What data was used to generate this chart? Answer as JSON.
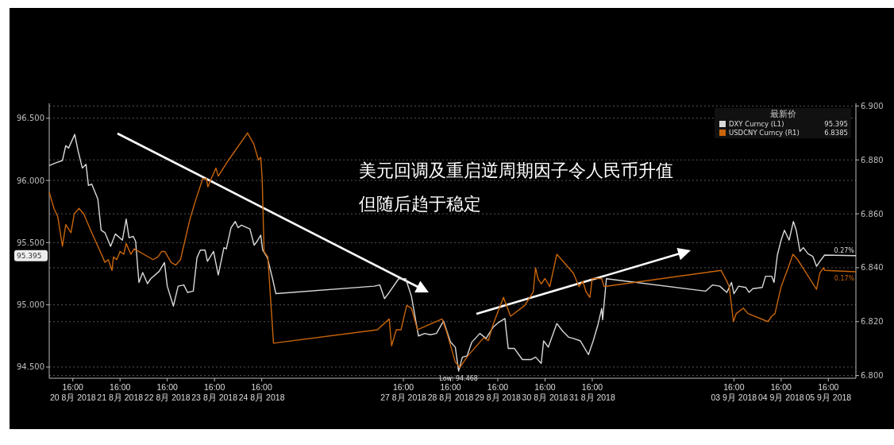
{
  "chart_data": {
    "type": "line",
    "legend_title": "最新价",
    "xlim": [
      "2018-08-20T04:00",
      "2018-09-06T06:00"
    ],
    "xticks": [
      {
        "value": "2018-08-20T16:00",
        "label": "16:00\n20 8月 2018"
      },
      {
        "value": "2018-08-21T16:00",
        "label": "16:00\n21 8月 2018"
      },
      {
        "value": "2018-08-22T16:00",
        "label": "16:00\n22 8月 2018"
      },
      {
        "value": "2018-08-23T16:00",
        "label": "16:00\n23 8月 2018"
      },
      {
        "value": "2018-08-24T16:00",
        "label": "16:00\n24 8月 2018"
      },
      {
        "value": "2018-08-27T16:00",
        "label": "16:00\n27 8月 2018"
      },
      {
        "value": "2018-08-28T16:00",
        "label": "16:00\n28 8月 2018"
      },
      {
        "value": "2018-08-29T16:00",
        "label": "16:00\n29 8月 2018"
      },
      {
        "value": "2018-08-30T16:00",
        "label": "16:00\n30 8月 2018"
      },
      {
        "value": "2018-08-31T16:00",
        "label": "16:00\n31 8月 2018"
      },
      {
        "value": "2018-09-03T16:00",
        "label": "16:00\n03 9月 2018"
      },
      {
        "value": "2018-09-04T16:00",
        "label": "16:00\n04 9月 2018"
      },
      {
        "value": "2018-09-05T16:00",
        "label": "16:00\n05 9月 2018"
      }
    ],
    "ylim": [
      94.41,
      96.62
    ],
    "yticks": [
      {
        "value": 94.5,
        "label": "94.500"
      },
      {
        "value": 95,
        "label": "95.000"
      },
      {
        "value": 95.5,
        "label": "95.500"
      },
      {
        "value": 96,
        "label": "96.000"
      },
      {
        "value": 96.5,
        "label": "96.500"
      }
    ],
    "y2lim": [
      6.799,
      6.901
    ],
    "y2ticks": [
      {
        "value": 6.8,
        "label": "6.800"
      },
      {
        "value": 6.82,
        "label": "6.820"
      },
      {
        "value": 6.84,
        "label": "6.840"
      },
      {
        "value": 6.86,
        "label": "6.860"
      },
      {
        "value": 6.88,
        "label": "6.880"
      },
      {
        "value": 6.9,
        "label": "6.900"
      }
    ],
    "grid": "y",
    "legend": "top right",
    "series": [
      {
        "name": "DXY Curncy (L1)",
        "color": "#d9d9d9",
        "x": [
          "2018-08-20T04:00",
          "2018-08-20T07:07",
          "2018-08-20T10:43",
          "2018-08-20T12:24",
          "2018-08-20T13:50",
          "2018-08-20T16:58",
          "2018-08-20T18:38",
          "2018-08-20T20:48",
          "2018-08-20T22:43",
          "2018-08-20T23:55",
          "2018-08-21T01:36",
          "2018-08-21T04:43",
          "2018-08-21T06:24",
          "2018-08-21T08:19",
          "2018-08-21T11:12",
          "2018-08-21T13:36",
          "2018-08-21T17:12",
          "2018-08-21T19:07",
          "2018-08-21T20:34",
          "2018-08-21T22:43",
          "2018-08-21T23:55",
          "2018-08-22T01:36",
          "2018-08-22T03:31",
          "2018-08-22T05:55",
          "2018-08-22T07:36",
          "2018-08-22T11:55",
          "2018-08-22T14:34",
          "2018-08-22T16:00",
          "2018-08-22T19:07",
          "2018-08-22T21:31",
          "2018-08-23T00:24",
          "2018-08-23T02:19",
          "2018-08-23T05:12",
          "2018-08-23T07:07",
          "2018-08-23T08:48",
          "2018-08-23T11:12",
          "2018-08-23T12:24",
          "2018-08-23T15:31",
          "2018-08-23T17:55",
          "2018-08-23T20:48",
          "2018-08-23T22:00",
          "2018-08-24T00:24",
          "2018-08-24T02:34",
          "2018-08-24T04:00",
          "2018-08-24T05:41",
          "2018-08-24T10:00",
          "2018-08-24T12:10",
          "2018-08-24T13:36",
          "2018-08-24T15:31",
          "2018-08-24T16:29",
          "2018-08-24T18:53",
          "2018-08-24T21:31",
          "2018-08-24T23:12",
          "2018-08-27T01:07",
          "2018-08-27T04:00",
          "2018-08-27T06:24",
          "2018-08-27T08:48",
          "2018-08-27T13:36",
          "2018-08-27T17:12",
          "2018-08-27T20:05",
          "2018-08-27T23:41",
          "2018-08-28T02:48",
          "2018-08-28T05:41",
          "2018-08-28T08:48",
          "2018-08-28T12:24",
          "2018-08-28T16:00",
          "2018-08-28T18:24",
          "2018-08-28T20:05",
          "2018-08-28T22:00",
          "2018-08-29T00:24",
          "2018-08-29T02:48",
          "2018-08-29T06:53",
          "2018-08-29T10:00",
          "2018-08-29T13:36",
          "2018-08-29T16:29",
          "2018-08-29T19:36",
          "2018-08-29T21:17",
          "2018-08-30T00:24",
          "2018-08-30T04:29",
          "2018-08-30T08:48",
          "2018-08-30T11:12",
          "2018-08-30T14:05",
          "2018-08-30T15:17",
          "2018-08-30T17:41",
          "2018-08-30T22:00",
          "2018-08-31T00:53",
          "2018-08-31T04:00",
          "2018-08-31T06:24",
          "2018-08-31T10:00",
          "2018-08-31T14:05",
          "2018-08-31T16:29",
          "2018-08-31T18:53",
          "2018-08-31T20:48",
          "2018-08-31T21:17",
          "2018-08-31T23:12",
          "2018-09-03T01:36",
          "2018-09-03T05:12",
          "2018-09-03T08:48",
          "2018-09-03T12:24",
          "2018-09-03T14:48",
          "2018-09-03T16:00",
          "2018-09-03T18:24",
          "2018-09-03T22:00",
          "2018-09-03T23:41",
          "2018-09-04T01:36",
          "2018-09-04T06:24",
          "2018-09-04T08:05",
          "2018-09-04T11:12",
          "2018-09-04T12:24",
          "2018-09-04T14:05",
          "2018-09-04T16:00",
          "2018-09-04T17:41",
          "2018-09-04T20:05",
          "2018-09-04T22:14",
          "2018-09-04T23:41",
          "2018-09-05T01:36",
          "2018-09-05T03:17",
          "2018-09-05T05:41",
          "2018-09-05T08:05",
          "2018-09-05T10:00",
          "2018-09-05T11:41",
          "2018-09-05T14:05",
          "2018-09-06T06:00"
        ],
        "values": [
          96.12,
          96.14,
          96.16,
          96.28,
          96.26,
          96.37,
          96.24,
          96.1,
          96.13,
          95.96,
          95.97,
          95.85,
          95.6,
          95.58,
          95.47,
          95.57,
          95.52,
          95.69,
          95.54,
          95.55,
          95.51,
          95.18,
          95.26,
          95.17,
          95.21,
          95.27,
          95.34,
          95.15,
          94.99,
          95.15,
          95.16,
          95.1,
          95.11,
          95.38,
          95.44,
          95.44,
          95.35,
          95.43,
          95.24,
          95.46,
          95.45,
          95.62,
          95.67,
          95.62,
          95.64,
          95.61,
          95.48,
          95.51,
          95.56,
          95.44,
          95.38,
          95.21,
          95.09,
          95.15,
          95.16,
          95.05,
          95.1,
          95.21,
          95.21,
          95.07,
          94.75,
          94.77,
          94.76,
          94.77,
          94.87,
          94.7,
          94.66,
          94.468,
          94.58,
          94.59,
          94.7,
          94.77,
          94.73,
          94.82,
          94.86,
          94.89,
          94.65,
          94.65,
          94.56,
          94.56,
          94.58,
          94.53,
          94.71,
          94.66,
          94.85,
          94.79,
          94.74,
          94.73,
          94.71,
          94.6,
          94.71,
          94.84,
          94.97,
          94.88,
          95.21,
          95.11,
          95.16,
          95.15,
          95.1,
          95.18,
          95.09,
          95.15,
          95.14,
          95.1,
          95.13,
          95.14,
          95.23,
          95.23,
          95.18,
          95.4,
          95.52,
          95.6,
          95.52,
          95.67,
          95.6,
          95.43,
          95.46,
          95.41,
          95.39,
          95.31,
          95.35,
          95.4,
          95.395
        ]
      },
      {
        "name": "USDCNY Curncy (R1)",
        "color": "#c8650a",
        "axis": "y2",
        "x": [
          "2018-08-20T04:00",
          "2018-08-20T06:24",
          "2018-08-20T08:19",
          "2018-08-20T10:43",
          "2018-08-20T12:24",
          "2018-08-20T15:02",
          "2018-08-20T16:43",
          "2018-08-20T19:07",
          "2018-08-20T21:31",
          "2018-08-21T01:36",
          "2018-08-21T05:55",
          "2018-08-21T08:19",
          "2018-08-21T10:00",
          "2018-08-21T11:55",
          "2018-08-21T12:38",
          "2018-08-21T14:19",
          "2018-08-21T16:00",
          "2018-08-21T17:55",
          "2018-08-21T19:07",
          "2018-08-21T21:31",
          "2018-08-21T23:12",
          "2018-08-22T08:48",
          "2018-08-22T11:12",
          "2018-08-22T13:07",
          "2018-08-22T14:48",
          "2018-08-22T17:55",
          "2018-08-22T20:19",
          "2018-08-22T22:43",
          "2018-08-23T03:31",
          "2018-08-23T06:24",
          "2018-08-23T10:00",
          "2018-08-23T11:55",
          "2018-08-23T12:38",
          "2018-08-23T14:19",
          "2018-08-23T16:43",
          "2018-08-23T17:55",
          "2018-08-23T23:12",
          "2018-08-24T08:48",
          "2018-08-24T11:55",
          "2018-08-24T14:19",
          "2018-08-24T15:31",
          "2018-08-24T16:14",
          "2018-08-24T17:12",
          "2018-08-24T19:07",
          "2018-08-24T22:00",
          "2018-08-27T02:48",
          "2018-08-27T08:48",
          "2018-08-27T10:00",
          "2018-08-27T12:24",
          "2018-08-27T14:48",
          "2018-08-27T17:41",
          "2018-08-27T20:05",
          "2018-08-27T23:12",
          "2018-08-28T11:41",
          "2018-08-28T14:05",
          "2018-08-28T18:24",
          "2018-08-28T20:48",
          "2018-08-29T00:24",
          "2018-08-29T08:48",
          "2018-08-29T11:12",
          "2018-08-29T13:36",
          "2018-08-29T18:53",
          "2018-08-29T22:29",
          "2018-08-30T05:41",
          "2018-08-30T10:00",
          "2018-08-30T11:12",
          "2018-08-30T12:24",
          "2018-08-30T14:05",
          "2018-08-30T16:00",
          "2018-08-30T18:24",
          "2018-08-30T22:00",
          "2018-08-31T06:24",
          "2018-08-31T09:17",
          "2018-08-31T11:12",
          "2018-08-31T12:53",
          "2018-08-31T14:48",
          "2018-08-31T16:00",
          "2018-08-31T20:48",
          "2018-08-31T22:00",
          "2018-09-03T09:31",
          "2018-09-03T12:24",
          "2018-09-03T13:36",
          "2018-09-03T15:46",
          "2018-09-03T17:12",
          "2018-09-03T20:48",
          "2018-09-03T23:12",
          "2018-09-04T09:17",
          "2018-09-04T11:12",
          "2018-09-04T12:53",
          "2018-09-04T16:00",
          "2018-09-04T19:36",
          "2018-09-04T22:00",
          "2018-09-05T00:24",
          "2018-09-05T10:00",
          "2018-09-05T11:41",
          "2018-09-05T13:36",
          "2018-09-05T14:10",
          "2018-09-06T06:00"
        ],
        "values": [
          6.868,
          6.862,
          6.859,
          6.848,
          6.856,
          6.853,
          6.86,
          6.862,
          6.86,
          6.853,
          6.846,
          6.842,
          6.843,
          6.839,
          6.844,
          6.843,
          6.846,
          6.845,
          6.849,
          6.845,
          6.847,
          6.843,
          6.844,
          6.846,
          6.846,
          6.842,
          6.841,
          6.843,
          6.858,
          6.865,
          6.873,
          6.873,
          6.87,
          6.873,
          6.877,
          6.874,
          6.88,
          6.89,
          6.886,
          6.88,
          6.881,
          6.873,
          6.846,
          6.844,
          6.812,
          6.817,
          6.821,
          6.811,
          6.817,
          6.817,
          6.826,
          6.825,
          6.817,
          6.821,
          6.816,
          6.805,
          6.803,
          6.807,
          6.814,
          6.813,
          6.819,
          6.829,
          6.822,
          6.826,
          6.831,
          6.84,
          6.836,
          6.834,
          6.836,
          6.833,
          6.845,
          6.838,
          6.833,
          6.835,
          6.831,
          6.829,
          6.836,
          6.836,
          6.833,
          6.839,
          6.835,
          6.833,
          6.82,
          6.823,
          6.825,
          6.823,
          6.82,
          6.822,
          6.823,
          6.833,
          6.84,
          6.845,
          6.843,
          6.832,
          6.838,
          6.84,
          6.839,
          6.8385
        ]
      }
    ],
    "annotations": [
      "美元回调及重启逆周期因子令人民币升值",
      "但随后趋于稳定",
      "Low: 94.468",
      "0.27%",
      "0.17%",
      "95.395",
      "6.8385"
    ]
  }
}
